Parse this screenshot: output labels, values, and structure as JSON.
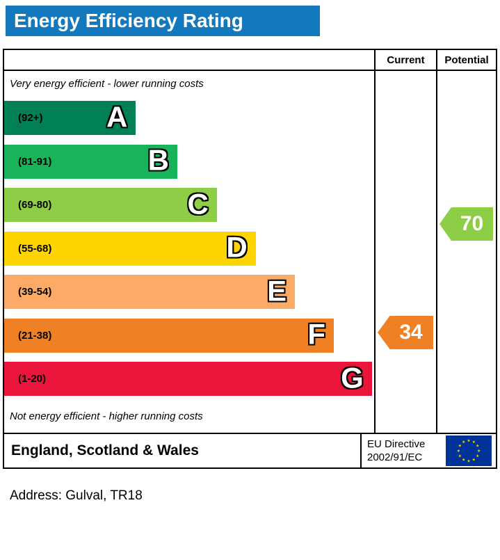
{
  "title": "Energy Efficiency Rating",
  "columns": {
    "current": "Current",
    "potential": "Potential"
  },
  "notes": {
    "top": "Very energy efficient - lower running costs",
    "bottom": "Not energy efficient - higher running costs"
  },
  "chart_data": {
    "type": "bar",
    "title": "Energy Efficiency Rating",
    "scale": {
      "min": 1,
      "max": 100
    },
    "bands": [
      {
        "letter": "A",
        "range": "(92+)",
        "min": 92,
        "max": 100,
        "color": "#008054",
        "width_pct": 35.6
      },
      {
        "letter": "B",
        "range": "(81-91)",
        "min": 81,
        "max": 91,
        "color": "#19b459",
        "width_pct": 46.8
      },
      {
        "letter": "C",
        "range": "(69-80)",
        "min": 69,
        "max": 80,
        "color": "#8dce46",
        "width_pct": 57.5
      },
      {
        "letter": "D",
        "range": "(55-68)",
        "min": 55,
        "max": 68,
        "color": "#ffd500",
        "width_pct": 68.0
      },
      {
        "letter": "E",
        "range": "(39-54)",
        "min": 39,
        "max": 54,
        "color": "#fcaa65",
        "width_pct": 78.6
      },
      {
        "letter": "F",
        "range": "(21-38)",
        "min": 21,
        "max": 38,
        "color": "#ef8023",
        "width_pct": 89.1
      },
      {
        "letter": "G",
        "range": "(1-20)",
        "min": 1,
        "max": 20,
        "color": "#e9153b",
        "width_pct": 99.4
      }
    ],
    "current": {
      "value": 34,
      "band": "F",
      "color": "#ef8023"
    },
    "potential": {
      "value": 70,
      "band": "C",
      "color": "#8dce46"
    }
  },
  "footer": {
    "region": "England, Scotland & Wales",
    "directive_line1": "EU Directive",
    "directive_line2": "2002/91/EC"
  },
  "colors": {
    "title_bar": "#1479bc",
    "flag_blue": "#003399",
    "flag_star": "#ffcc00"
  },
  "address": "Address: Gulval, TR18"
}
